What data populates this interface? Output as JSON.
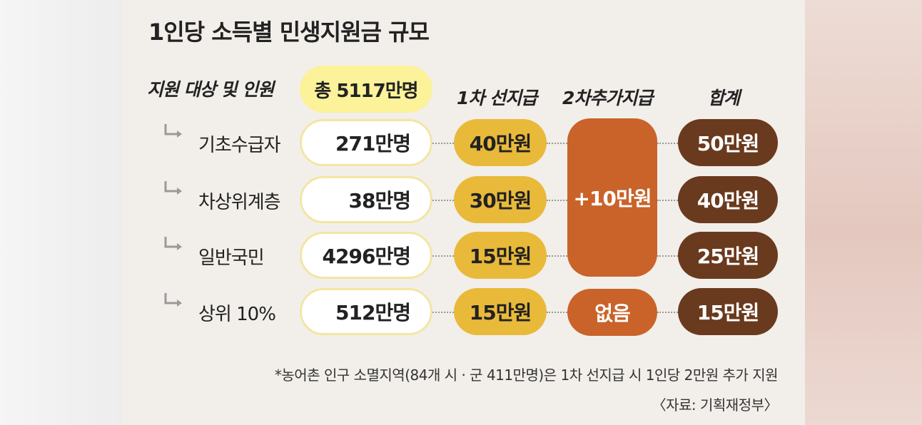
{
  "title": "1인당 소득별 민생지원금 규모",
  "headers": {
    "target": "지원 대상 및 인원",
    "first": "1차 선지급",
    "second": "2차추가지급",
    "total": "합계"
  },
  "total_population": "총 5117만명",
  "rows": [
    {
      "label": "기초수급자",
      "count": "271만명",
      "first": "40만원",
      "sum": "50만원"
    },
    {
      "label": "차상위계층",
      "count": "38만명",
      "first": "30만원",
      "sum": "40만원"
    },
    {
      "label": "일반국민",
      "count": "4296만명",
      "first": "15만원",
      "sum": "25만원"
    },
    {
      "label": "상위 10%",
      "count": "512만명",
      "first": "15만원",
      "sum": "15만원"
    }
  ],
  "second_payment": {
    "common": "+10만원",
    "top10": "없음"
  },
  "footnote": "*농어촌 인구 소멸지역(84개 시 · 군 411만명)은 1차 선지급 시 1인당 2만원 추가 지원",
  "source": "〈자료: 기획재정부〉",
  "colors": {
    "total_pill": "#fbf29a",
    "first_payment": "#e9b93a",
    "second_payment": "#c9632a",
    "sum": "#6a3a1e"
  }
}
